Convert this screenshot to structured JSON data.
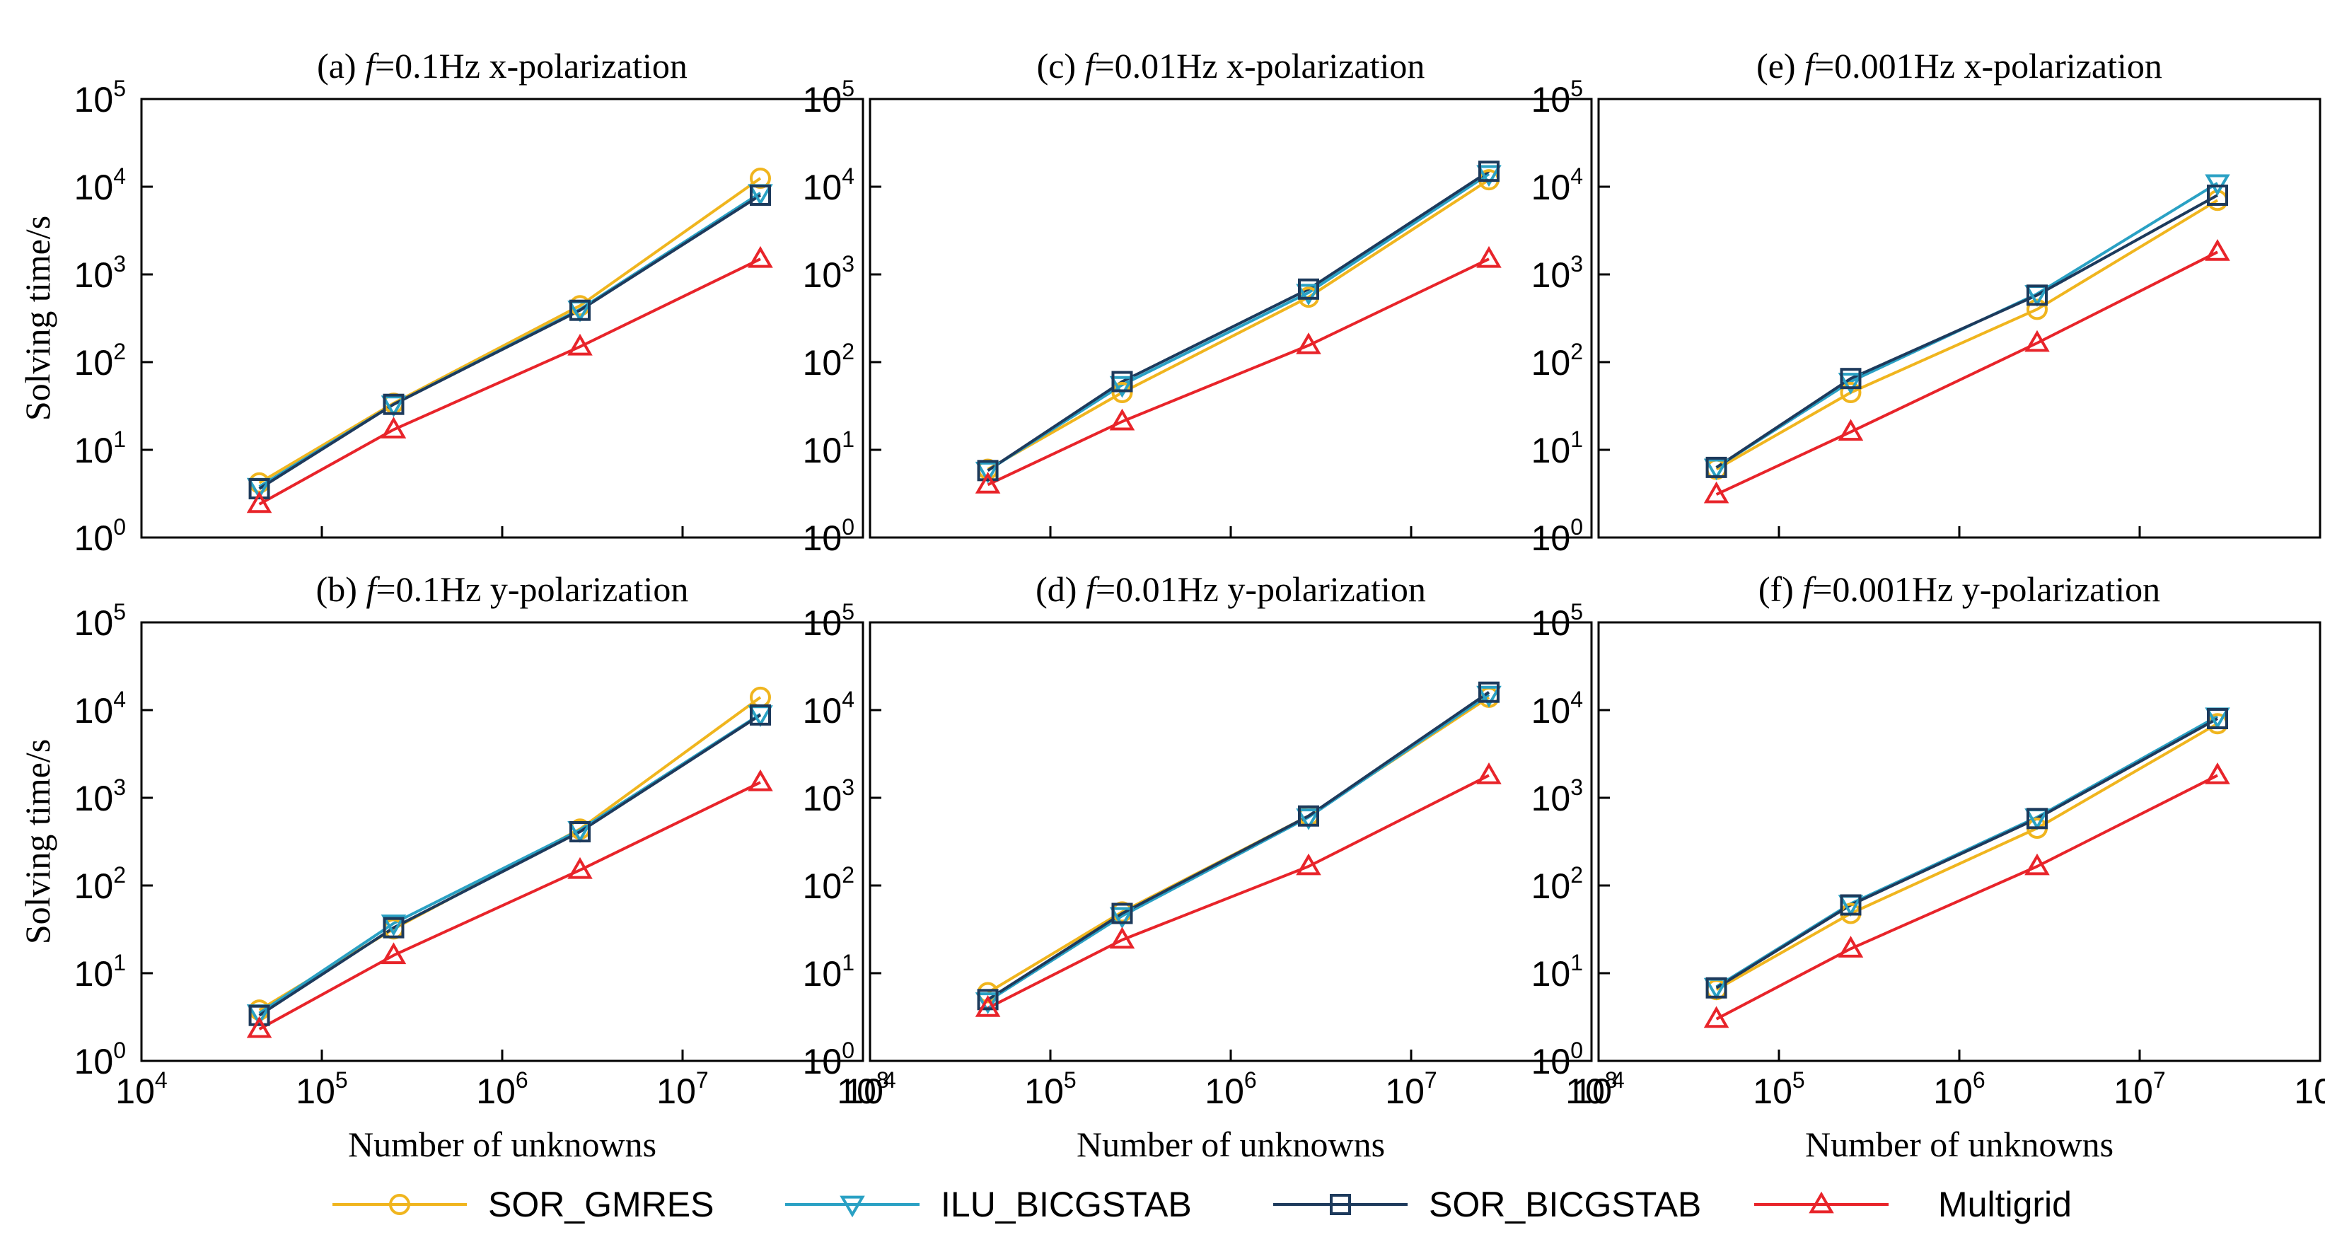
{
  "chart_data": {
    "type": "line",
    "scale": {
      "x": "log",
      "y": "log"
    },
    "series_styles": [
      {
        "name": "SOR_GMRES",
        "color": "#f0b51e",
        "marker": "circle"
      },
      {
        "name": "ILU_BICGSTAB",
        "color": "#2aa1c4",
        "marker": "triangle-down"
      },
      {
        "name": "SOR_BICGSTAB",
        "color": "#1d3a5c",
        "marker": "square"
      },
      {
        "name": "Multigrid",
        "color": "#e8242a",
        "marker": "triangle-up"
      }
    ],
    "legend": {
      "position": "bottom",
      "labels": [
        "SOR_GMRES",
        "ILU_BICGSTAB",
        "SOR_BICGSTAB",
        "Multigrid"
      ]
    },
    "panels": [
      {
        "id": "a",
        "title_prefix": "(a) ",
        "title_italic": "f",
        "title_suffix": "=0.1Hz x-polarization",
        "xlabel": "",
        "ylabel": "Solving time/s",
        "xlim": [
          10000,
          100000000
        ],
        "ylim": [
          1,
          100000
        ],
        "x": [
          45000,
          250000,
          2700000,
          27000000
        ],
        "series": [
          {
            "name": "SOR_GMRES",
            "values": [
              4.2,
              34,
              440,
              12500
            ]
          },
          {
            "name": "ILU_BICGSTAB",
            "values": [
              3.8,
              33,
              400,
              8500
            ]
          },
          {
            "name": "SOR_BICGSTAB",
            "values": [
              3.6,
              33,
              390,
              8000
            ]
          },
          {
            "name": "Multigrid",
            "values": [
              2.4,
              17,
              150,
              1500
            ]
          }
        ]
      },
      {
        "id": "c",
        "title_prefix": "(c) ",
        "title_italic": "f",
        "title_suffix": "=0.01Hz x-polarization",
        "xlabel": "",
        "ylabel": "",
        "xlim": [
          10000,
          100000000
        ],
        "ylim": [
          1,
          100000
        ],
        "x": [
          45000,
          250000,
          2700000,
          27000000
        ],
        "series": [
          {
            "name": "SOR_GMRES",
            "values": [
              6.0,
              45,
              550,
              12000
            ]
          },
          {
            "name": "ILU_BICGSTAB",
            "values": [
              5.8,
              55,
              620,
              14000
            ]
          },
          {
            "name": "SOR_BICGSTAB",
            "values": [
              5.8,
              60,
              680,
              15000
            ]
          },
          {
            "name": "Multigrid",
            "values": [
              4.0,
              21,
              155,
              1500
            ]
          }
        ]
      },
      {
        "id": "e",
        "title_prefix": "(e) ",
        "title_italic": "f",
        "title_suffix": "=0.001Hz x-polarization",
        "xlabel": "",
        "ylabel": "",
        "xlim": [
          10000,
          100000000
        ],
        "ylim": [
          1,
          100000
        ],
        "x": [
          45000,
          250000,
          2700000,
          27000000
        ],
        "series": [
          {
            "name": "SOR_GMRES",
            "values": [
              6.0,
              45,
              400,
              7000
            ]
          },
          {
            "name": "ILU_BICGSTAB",
            "values": [
              6.3,
              60,
              600,
              11000
            ]
          },
          {
            "name": "SOR_BICGSTAB",
            "values": [
              6.3,
              65,
              580,
              8000
            ]
          },
          {
            "name": "Multigrid",
            "values": [
              3.1,
              16,
              165,
              1800
            ]
          }
        ]
      },
      {
        "id": "b",
        "title_prefix": "(b) ",
        "title_italic": "f",
        "title_suffix": "=0.1Hz y-polarization",
        "xlabel": "Number of unknowns",
        "ylabel": "Solving time/s",
        "xlim": [
          10000,
          100000000
        ],
        "ylim": [
          1,
          100000
        ],
        "x": [
          45000,
          250000,
          2700000,
          27000000
        ],
        "series": [
          {
            "name": "SOR_GMRES",
            "values": [
              3.8,
              32,
              440,
              14000
            ]
          },
          {
            "name": "ILU_BICGSTAB",
            "values": [
              3.5,
              37,
              430,
              9000
            ]
          },
          {
            "name": "SOR_BICGSTAB",
            "values": [
              3.3,
              33,
              410,
              8800
            ]
          },
          {
            "name": "Multigrid",
            "values": [
              2.3,
              16,
              150,
              1500
            ]
          }
        ]
      },
      {
        "id": "d",
        "title_prefix": "(d) ",
        "title_italic": "f",
        "title_suffix": "=0.01Hz y-polarization",
        "xlabel": "Number of unknowns",
        "ylabel": "",
        "xlim": [
          10000,
          100000000
        ],
        "ylim": [
          1,
          100000
        ],
        "x": [
          45000,
          250000,
          2700000,
          27000000
        ],
        "series": [
          {
            "name": "SOR_GMRES",
            "values": [
              6.0,
              50,
              620,
              14000
            ]
          },
          {
            "name": "ILU_BICGSTAB",
            "values": [
              4.8,
              45,
              600,
              15000
            ]
          },
          {
            "name": "SOR_BICGSTAB",
            "values": [
              5.0,
              48,
              620,
              16000
            ]
          },
          {
            "name": "Multigrid",
            "values": [
              4.0,
              24,
              165,
              1800
            ]
          }
        ]
      },
      {
        "id": "f",
        "title_prefix": "(f) ",
        "title_italic": "f",
        "title_suffix": "=0.001Hz y-polarization",
        "xlabel": "Number of unknowns",
        "ylabel": "",
        "xlim": [
          10000,
          100000000
        ],
        "ylim": [
          1,
          100000
        ],
        "x": [
          45000,
          250000,
          2700000,
          27000000
        ],
        "series": [
          {
            "name": "SOR_GMRES",
            "values": [
              6.5,
              48,
              450,
              7000
            ]
          },
          {
            "name": "ILU_BICGSTAB",
            "values": [
              7.0,
              62,
              600,
              8500
            ]
          },
          {
            "name": "SOR_BICGSTAB",
            "values": [
              6.8,
              60,
              580,
              8000
            ]
          },
          {
            "name": "Multigrid",
            "values": [
              3.0,
              19,
              165,
              1800
            ]
          }
        ]
      }
    ]
  }
}
